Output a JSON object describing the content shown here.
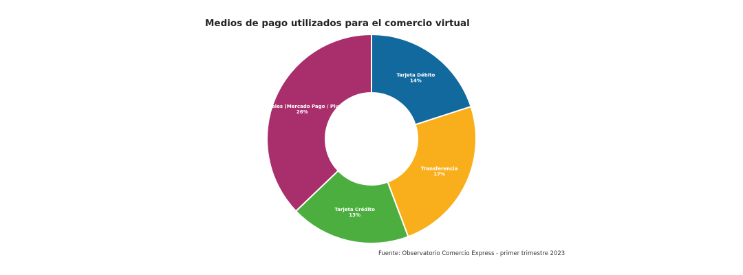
{
  "chart_data": {
    "type": "pie",
    "title": "Medios de pago utilizados para el comercio virtual",
    "source": "Fuente: Observatorio Comercio Express - primer trimestre 2023",
    "legend": "none",
    "slices": [
      {
        "label": "Tarjeta Débito",
        "value": 14,
        "value_label": "14%",
        "color": "#12699E"
      },
      {
        "label": "Transferencia",
        "value": 17,
        "value_label": "17%",
        "color": "#F8AF1B"
      },
      {
        "label": "Tarjeta Crédito",
        "value": 13,
        "value_label": "13%",
        "color": "#4CAE3E"
      },
      {
        "label": "Billeteras Virtuales (Mercado Pago / Plus Pagos, etc)",
        "value": 26,
        "value_label": "26%",
        "color": "#A92F6C"
      }
    ]
  }
}
